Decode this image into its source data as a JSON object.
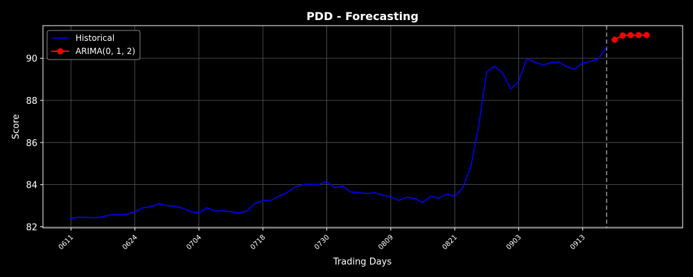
{
  "chart_data": {
    "type": "line",
    "title": "PDD - Forecasting",
    "xlabel": "Trading Days",
    "ylabel": "Score",
    "ylim": [
      81.95,
      91.55
    ],
    "yticks": [
      82,
      84,
      86,
      88,
      90
    ],
    "grid": true,
    "legend_position": "top-left",
    "background": "#000000",
    "x_range_index": [
      -3.5,
      76.5
    ],
    "xticks": [
      {
        "index": 0,
        "label": "0611"
      },
      {
        "index": 8,
        "label": "0624"
      },
      {
        "index": 16,
        "label": "0704"
      },
      {
        "index": 24,
        "label": "0718"
      },
      {
        "index": 32,
        "label": "0730"
      },
      {
        "index": 40,
        "label": "0809"
      },
      {
        "index": 48,
        "label": "0821"
      },
      {
        "index": 56,
        "label": "0903"
      },
      {
        "index": 64,
        "label": "0913"
      }
    ],
    "forecast_start_index": 67,
    "series": [
      {
        "name": "Historical",
        "color": "#0000ff",
        "marker": false,
        "start_index": 0,
        "values": [
          82.4,
          82.45,
          82.45,
          82.42,
          82.48,
          82.57,
          82.57,
          82.6,
          82.7,
          82.9,
          82.95,
          83.1,
          83.0,
          82.97,
          82.88,
          82.72,
          82.65,
          82.9,
          82.75,
          82.75,
          82.72,
          82.65,
          82.75,
          83.1,
          83.25,
          83.25,
          83.45,
          83.62,
          83.88,
          84.0,
          84.02,
          84.0,
          84.15,
          83.85,
          83.93,
          83.65,
          83.62,
          83.58,
          83.62,
          83.5,
          83.42,
          83.25,
          83.4,
          83.35,
          83.15,
          83.45,
          83.35,
          83.55,
          83.45,
          83.85,
          84.85,
          86.8,
          89.35,
          89.62,
          89.3,
          88.55,
          88.9,
          89.98,
          89.82,
          89.68,
          89.78,
          89.83,
          89.6,
          89.48,
          89.78,
          89.85,
          89.98,
          90.55
        ]
      },
      {
        "name": "ARIMA(0, 1, 2)",
        "color": "#ff0000",
        "marker": true,
        "start_index": 68,
        "values": [
          90.88,
          91.08,
          91.1,
          91.1,
          91.1
        ]
      }
    ]
  }
}
